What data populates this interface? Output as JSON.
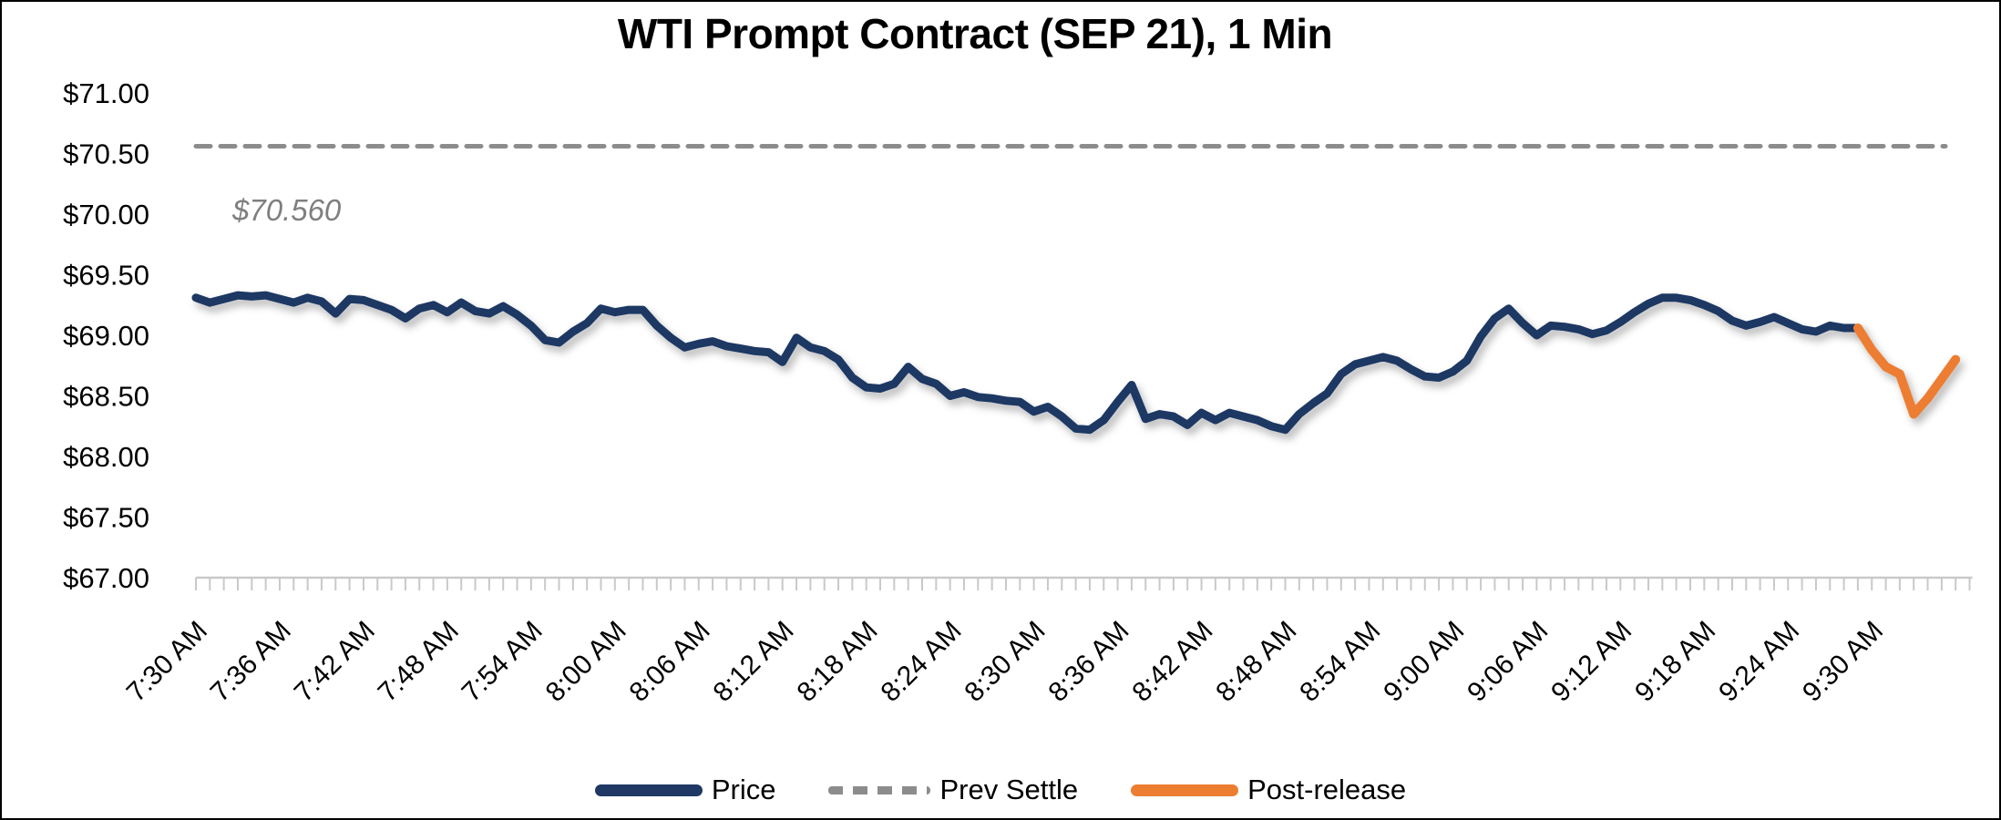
{
  "title": "WTI Prompt Contract (SEP 21), 1 Min",
  "annotation": {
    "text": "$70.560",
    "color": "#7f7f7f"
  },
  "legend": {
    "items": [
      {
        "label": "Price",
        "swatch": "solid"
      },
      {
        "label": "Prev Settle",
        "swatch": "dashed"
      },
      {
        "label": "Post-release",
        "swatch": "solid"
      }
    ]
  },
  "chart_data": {
    "type": "line",
    "title": "WTI Prompt Contract (SEP 21), 1 Min",
    "x_unit": "time, 1-minute bars",
    "x_axis_start": "7:30 AM",
    "x_axis_end": "9:37 AM",
    "x_tick_interval_min": 6,
    "x_minor_tick_interval_min": 1,
    "xticks": [
      "7:30 AM",
      "7:36 AM",
      "7:42 AM",
      "7:48 AM",
      "7:54 AM",
      "8:00 AM",
      "8:06 AM",
      "8:12 AM",
      "8:18 AM",
      "8:24 AM",
      "8:30 AM",
      "8:36 AM",
      "8:42 AM",
      "8:48 AM",
      "8:54 AM",
      "9:00 AM",
      "9:06 AM",
      "9:12 AM",
      "9:18 AM",
      "9:24 AM",
      "9:30 AM"
    ],
    "ylim": [
      67.0,
      71.0
    ],
    "ytick_step": 0.5,
    "yticks": [
      {
        "value": 67.0,
        "label": "$67.00"
      },
      {
        "value": 67.5,
        "label": "$67.50"
      },
      {
        "value": 68.0,
        "label": "$68.00"
      },
      {
        "value": 68.5,
        "label": "$68.50"
      },
      {
        "value": 69.0,
        "label": "$69.00"
      },
      {
        "value": 69.5,
        "label": "$69.50"
      },
      {
        "value": 70.0,
        "label": "$70.00"
      },
      {
        "value": 70.5,
        "label": "$70.50"
      },
      {
        "value": 71.0,
        "label": "$71.00"
      }
    ],
    "grid": false,
    "legend_position": "bottom",
    "series": [
      {
        "name": "Price",
        "type": "line",
        "color": "#1f3864",
        "stroke_width": 9,
        "start_time": "7:30 AM",
        "interval_min": 1,
        "values": [
          69.31,
          69.27,
          69.3,
          69.33,
          69.32,
          69.33,
          69.3,
          69.27,
          69.31,
          69.28,
          69.18,
          69.3,
          69.29,
          69.25,
          69.21,
          69.14,
          69.22,
          69.25,
          69.19,
          69.27,
          69.2,
          69.18,
          69.24,
          69.17,
          69.08,
          68.96,
          68.94,
          69.03,
          69.1,
          69.22,
          69.19,
          69.21,
          69.21,
          69.08,
          68.98,
          68.9,
          68.93,
          68.95,
          68.91,
          68.89,
          68.87,
          68.86,
          68.78,
          68.98,
          68.9,
          68.87,
          68.8,
          68.65,
          68.57,
          68.56,
          68.6,
          68.74,
          68.64,
          68.6,
          68.5,
          68.53,
          68.49,
          68.48,
          68.46,
          68.45,
          68.37,
          68.41,
          68.33,
          68.23,
          68.22,
          68.3,
          68.45,
          68.59,
          68.31,
          68.35,
          68.33,
          68.26,
          68.36,
          68.3,
          68.36,
          68.33,
          68.3,
          68.25,
          68.22,
          68.35,
          68.44,
          68.52,
          68.68,
          68.76,
          68.79,
          68.82,
          68.79,
          68.72,
          68.66,
          68.65,
          68.7,
          68.79,
          68.99,
          69.14,
          69.22,
          69.1,
          69.0,
          69.08,
          69.07,
          69.05,
          69.01,
          69.04,
          69.11,
          69.19,
          69.26,
          69.31,
          69.31,
          69.29,
          69.25,
          69.2,
          69.12,
          69.08,
          69.11,
          69.15,
          69.1,
          69.05,
          69.03,
          69.08,
          69.06,
          69.06
        ]
      },
      {
        "name": "Prev Settle",
        "type": "hline",
        "color": "#8c8c8c",
        "style": "dashed",
        "value": 70.56,
        "label": "$70.560"
      },
      {
        "name": "Post-release",
        "type": "line",
        "color": "#ed7d31",
        "stroke_width": 10,
        "start_time": "9:29 AM",
        "interval_min": 1,
        "values": [
          69.06,
          68.88,
          68.74,
          68.68,
          68.35,
          68.48,
          68.64,
          68.8
        ]
      }
    ]
  }
}
